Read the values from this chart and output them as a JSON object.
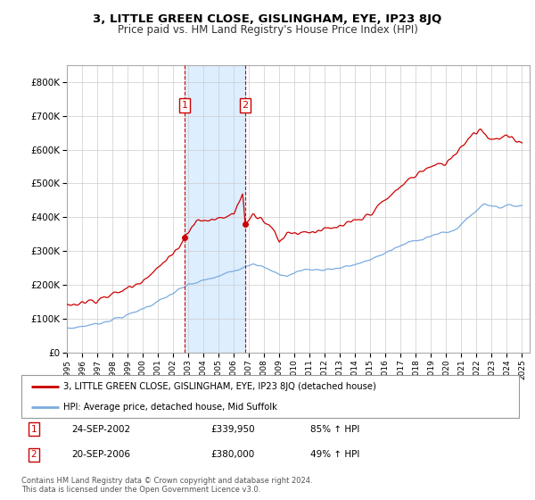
{
  "title": "3, LITTLE GREEN CLOSE, GISLINGHAM, EYE, IP23 8JQ",
  "subtitle": "Price paid vs. HM Land Registry's House Price Index (HPI)",
  "legend_line1": "3, LITTLE GREEN CLOSE, GISLINGHAM, EYE, IP23 8JQ (detached house)",
  "legend_line2": "HPI: Average price, detached house, Mid Suffolk",
  "annotation1_label": "1",
  "annotation1_date": "24-SEP-2002",
  "annotation1_price": "£339,950",
  "annotation1_hpi": "85% ↑ HPI",
  "annotation2_label": "2",
  "annotation2_date": "20-SEP-2006",
  "annotation2_price": "£380,000",
  "annotation2_hpi": "49% ↑ HPI",
  "footer": "Contains HM Land Registry data © Crown copyright and database right 2024.\nThis data is licensed under the Open Government Licence v3.0.",
  "sale1_x": 2002.75,
  "sale1_y": 339950,
  "sale2_x": 2006.75,
  "sale2_y": 380000,
  "hpi_color": "#7aabe0",
  "price_color": "#cc0000",
  "shading_color": "#ddeeff",
  "annotation_color": "#cc0000",
  "ylim_min": 0,
  "ylim_max": 850000,
  "xlim_min": 1995,
  "xlim_max": 2025.5,
  "yticks": [
    0,
    100000,
    200000,
    300000,
    400000,
    500000,
    600000,
    700000,
    800000
  ],
  "ytick_labels": [
    "£0",
    "£100K",
    "£200K",
    "£300K",
    "£400K",
    "£500K",
    "£600K",
    "£700K",
    "£800K"
  ],
  "xticks": [
    1995,
    1996,
    1997,
    1998,
    1999,
    2000,
    2001,
    2002,
    2003,
    2004,
    2005,
    2006,
    2007,
    2008,
    2009,
    2010,
    2011,
    2012,
    2013,
    2014,
    2015,
    2016,
    2017,
    2018,
    2019,
    2020,
    2021,
    2022,
    2023,
    2024,
    2025
  ]
}
